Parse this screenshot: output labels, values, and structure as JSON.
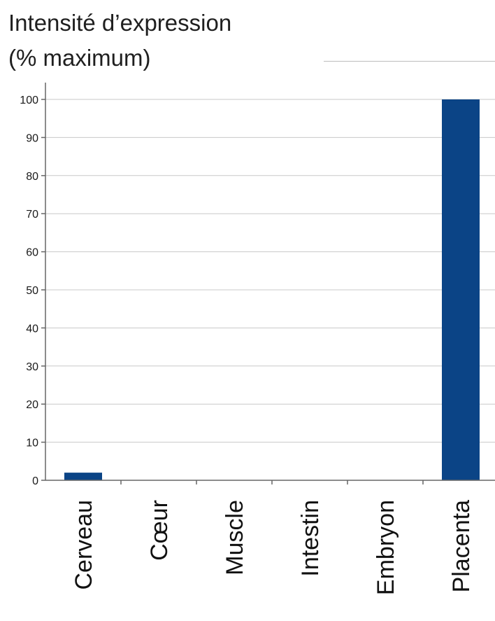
{
  "chart_data": {
    "type": "bar",
    "title": "Intensité d’expression\n(% maximum)",
    "xlabel": "",
    "ylabel": "",
    "categories": [
      "Cerveau",
      "Cœur",
      "Muscle",
      "Intestin",
      "Embryon",
      "Placenta"
    ],
    "values": [
      2,
      0,
      0,
      0,
      0,
      100
    ],
    "ylim": [
      0,
      100
    ],
    "yticks": [
      0,
      10,
      20,
      30,
      40,
      50,
      60,
      70,
      80,
      90,
      100
    ],
    "grid": true,
    "bar_color": "#0b4486",
    "grid_color": "#c8c8c8",
    "axis_color": "#666666"
  }
}
